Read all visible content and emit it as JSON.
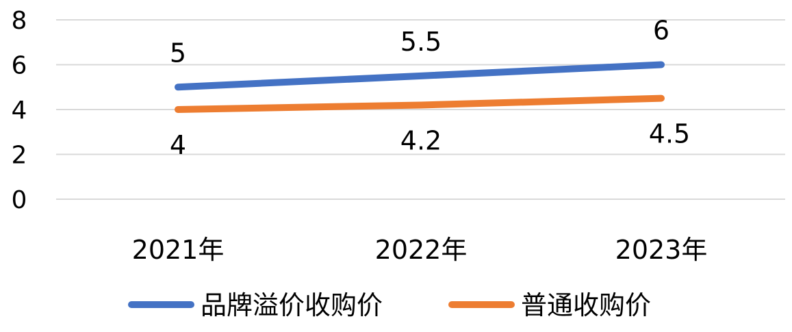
{
  "chart_data": {
    "type": "line",
    "title": "",
    "xlabel": "",
    "ylabel": "",
    "categories": [
      "2021年",
      "2022年",
      "2023年"
    ],
    "ylim": [
      0,
      8
    ],
    "yticks": [
      "0",
      "2",
      "4",
      "6",
      "8"
    ],
    "grid": true,
    "legend_position": "bottom",
    "series": [
      {
        "name": "品牌溢价收购价",
        "values": [
          5,
          5.5,
          6
        ],
        "labels": [
          "5",
          "5.5",
          "6"
        ],
        "color": "#4472C4",
        "label_side": "above"
      },
      {
        "name": "普通收购价",
        "values": [
          4,
          4.2,
          4.5
        ],
        "labels": [
          "4",
          "4.2",
          "4.5"
        ],
        "color": "#ED7D31",
        "label_side": "below"
      }
    ]
  }
}
